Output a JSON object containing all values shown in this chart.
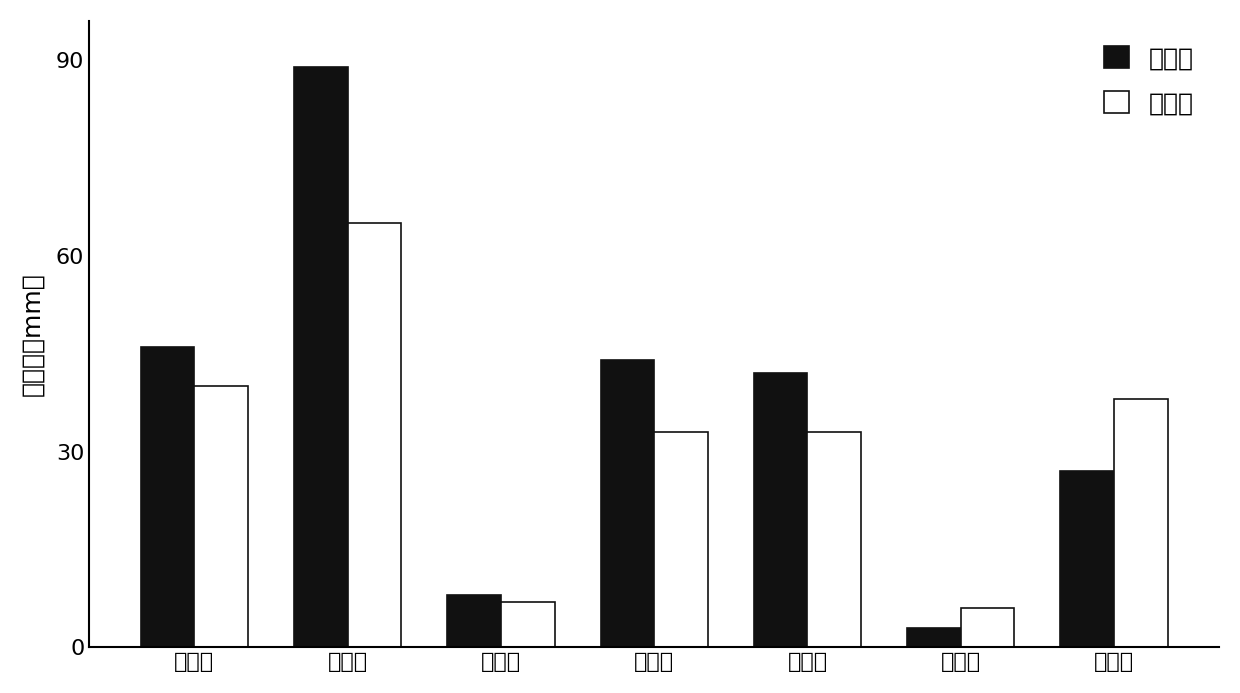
{
  "categories": [
    "第一次",
    "第二次",
    "第三次",
    "第四次",
    "第五次",
    "第六次",
    "第七次"
  ],
  "measured": [
    46,
    89,
    8,
    44,
    42,
    3,
    27
  ],
  "simulated": [
    40,
    65,
    7,
    33,
    33,
    6,
    38
  ],
  "bar_color_measured": "#111111",
  "bar_color_simulated": "#ffffff",
  "bar_edgecolor": "#111111",
  "ylabel": "径流量（mm）",
  "ylim": [
    0,
    96
  ],
  "yticks": [
    0,
    30,
    60,
    90
  ],
  "legend_measured": "实测值",
  "legend_simulated": "模拟值",
  "bar_width": 0.35,
  "background_color": "#ffffff",
  "font_size": 18,
  "legend_font_size": 18,
  "tick_font_size": 16,
  "ylabel_font_size": 18
}
